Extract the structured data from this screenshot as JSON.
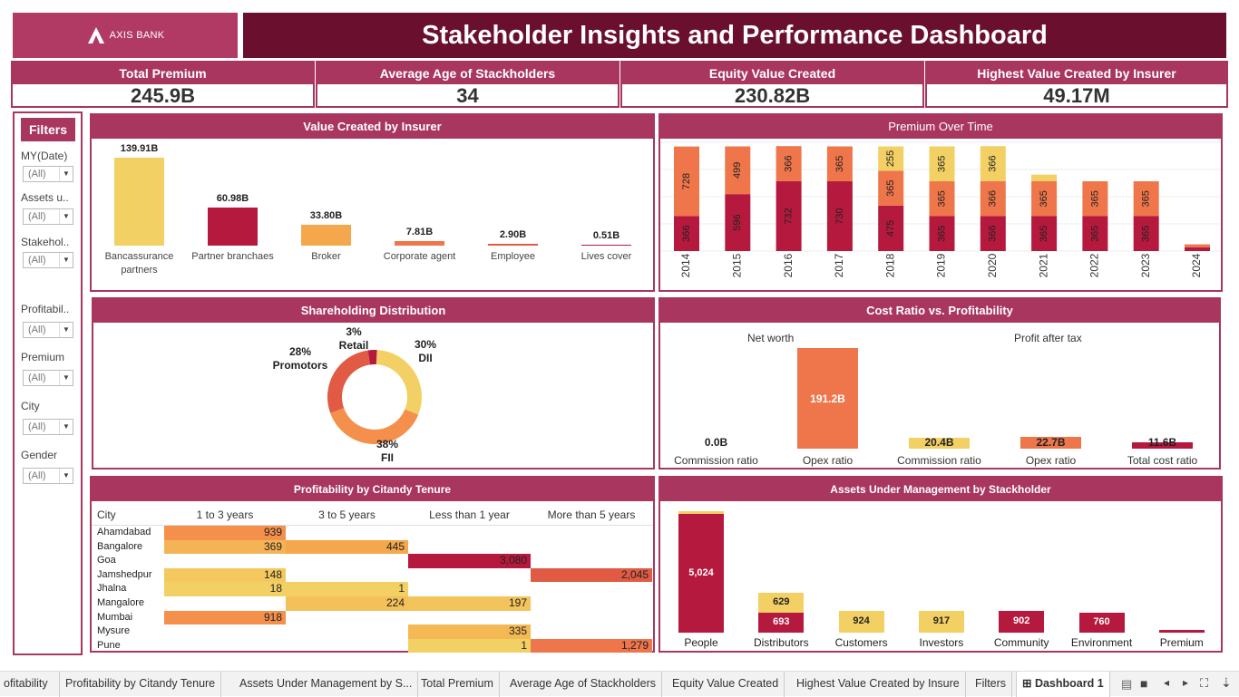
{
  "brand": {
    "name": "AXIS BANK"
  },
  "title": "Stakeholder Insights and Performance Dashboard",
  "colors": {
    "dark": "#6b0f2e",
    "accent": "#a8365f",
    "crimson": "#b5193d",
    "orange": "#ee764a",
    "yellow": "#f2d064",
    "amber": "#f4a84b",
    "red": "#e05a44"
  },
  "kpis": [
    {
      "label": "Total Premium",
      "value": "245.9B"
    },
    {
      "label": "Average Age of Stackholders",
      "value": "34"
    },
    {
      "label": "Equity Value Created",
      "value": "230.82B"
    },
    {
      "label": "Highest Value Created by Insurer",
      "value": "49.17M"
    }
  ],
  "filters": {
    "title": "Filters",
    "items": [
      {
        "label": "MY(Date)",
        "value": "(All)"
      },
      {
        "label": "Assets u..",
        "value": "(All)"
      },
      {
        "label": "Stakehol..",
        "value": "(All)"
      },
      {
        "label": "Profitabil..",
        "value": "(All)"
      },
      {
        "label": "Premium",
        "value": "(All)"
      },
      {
        "label": "City",
        "value": "(All)"
      },
      {
        "label": "Gender",
        "value": "(All)"
      }
    ]
  },
  "value_insurer": {
    "title": "Value Created by Insurer",
    "chart_data": {
      "type": "bar",
      "categories": [
        "Bancassurance partners",
        "Partner branchaes",
        "Broker",
        "Corporate agent",
        "Employee",
        "Lives cover"
      ],
      "values": [
        139.91,
        60.98,
        33.8,
        7.81,
        2.9,
        0.51
      ],
      "labels": [
        "139.91B",
        "60.98B",
        "33.80B",
        "7.81B",
        "2.90B",
        "0.51B"
      ],
      "colors": [
        "#f2d064",
        "#b5193d",
        "#f4a84b",
        "#ee764a",
        "#e05a44",
        "#b5193d"
      ]
    }
  },
  "premium_time": {
    "title": "Premium Over Time",
    "chart_data": {
      "type": "bar",
      "stacked": true,
      "categories": [
        "2014",
        "2015",
        "2016",
        "2017",
        "2018",
        "2019",
        "2020",
        "2021",
        "2022",
        "2023",
        "2024"
      ],
      "series": [
        {
          "color": "#b5193d",
          "values": [
            366,
            596,
            732,
            730,
            475,
            365,
            366,
            365,
            365,
            365,
            40
          ],
          "labels": [
            "366",
            "596",
            "732",
            "730",
            "475",
            "365",
            "366",
            "365",
            "365",
            "365",
            ""
          ]
        },
        {
          "color": "#ee764a",
          "values": [
            728,
            499,
            366,
            365,
            365,
            365,
            366,
            365,
            365,
            365,
            30
          ],
          "labels": [
            "728",
            "499",
            "366",
            "365",
            "365",
            "365",
            "366",
            "365",
            "365",
            "365",
            ""
          ]
        },
        {
          "color": "#f2d064",
          "values": [
            0,
            0,
            0,
            0,
            255,
            365,
            366,
            70,
            0,
            0,
            0
          ],
          "labels": [
            "",
            "",
            "",
            "",
            "255",
            "365",
            "366",
            "",
            "",
            "",
            ""
          ]
        }
      ]
    }
  },
  "shareholding": {
    "title": "Shareholding Distribution",
    "chart_data": {
      "type": "pie",
      "categories": [
        "DII",
        "FII",
        "Promotors",
        "Retail"
      ],
      "values": [
        30,
        38,
        28,
        3
      ],
      "colors": [
        "#f2d064",
        "#f4904b",
        "#e05a44",
        "#b5193d"
      ],
      "labels": [
        {
          "pct": "30%",
          "name": "DII"
        },
        {
          "pct": "38%",
          "name": "FII"
        },
        {
          "pct": "28%",
          "name": "Promotors"
        },
        {
          "pct": "3%",
          "name": "Retail"
        }
      ]
    }
  },
  "cost_ratio": {
    "title": "Cost Ratio vs. Profitability",
    "groups": [
      "Net worth",
      "Profit after tax"
    ],
    "chart_data": {
      "type": "bar",
      "categories": [
        "Commission ratio",
        "Opex ratio",
        "Commission ratio",
        "Opex ratio",
        "Total cost ratio"
      ],
      "values": [
        0.0,
        191.2,
        20.4,
        22.7,
        11.6
      ],
      "labels": [
        "0.0B",
        "191.2B",
        "20.4B",
        "22.7B",
        "11.6B"
      ],
      "colors": [
        "#ee764a",
        "#ee764a",
        "#f2d064",
        "#ee764a",
        "#b5193d"
      ]
    }
  },
  "profitability": {
    "title": "Profitability by Citandy  Tenure",
    "columns": [
      "City",
      "1 to 3 years",
      "3 to 5 years",
      "Less than 1 year",
      "More than 5 years"
    ],
    "rows": [
      {
        "city": "Ahamdabad",
        "cells": [
          {
            "v": "939",
            "c": "#f4904b"
          },
          null,
          null,
          null
        ]
      },
      {
        "city": "Bangalore",
        "cells": [
          {
            "v": "369",
            "c": "#f4b456"
          },
          {
            "v": "445",
            "c": "#f4a84b"
          },
          null,
          null
        ]
      },
      {
        "city": "Goa",
        "cells": [
          null,
          null,
          {
            "v": "3,080",
            "c": "#b5193d"
          },
          null
        ]
      },
      {
        "city": "Jamshedpur",
        "cells": [
          {
            "v": "148",
            "c": "#f4c85e"
          },
          null,
          null,
          {
            "v": "2,045",
            "c": "#e05a44"
          }
        ]
      },
      {
        "city": "Jhalna",
        "cells": [
          {
            "v": "18",
            "c": "#f2d064"
          },
          {
            "v": "1",
            "c": "#f2d064"
          },
          null,
          null
        ]
      },
      {
        "city": "Mangalore",
        "cells": [
          null,
          {
            "v": "224",
            "c": "#f4c05a"
          },
          {
            "v": "197",
            "c": "#f4c45c"
          },
          null
        ]
      },
      {
        "city": "Mumbai",
        "cells": [
          {
            "v": "918",
            "c": "#f4904b"
          },
          null,
          null,
          null
        ]
      },
      {
        "city": "Mysure",
        "cells": [
          null,
          null,
          {
            "v": "335",
            "c": "#f4b854"
          },
          null
        ]
      },
      {
        "city": "Pune",
        "cells": [
          null,
          null,
          {
            "v": "1",
            "c": "#f2d064"
          },
          {
            "v": "1,279",
            "c": "#ee764a"
          }
        ]
      }
    ]
  },
  "aum": {
    "title": "Assets Under Management by Stackholder",
    "chart_data": {
      "type": "bar",
      "stacked": true,
      "categories": [
        "People",
        "Distributors",
        "Customers",
        "Investors",
        "Community",
        "Environment",
        "Premium"
      ],
      "series": [
        {
          "color": "#b5193d",
          "values": [
            5024,
            693,
            0,
            0,
            902,
            760,
            100
          ],
          "labels": [
            "5,024",
            "693",
            "",
            "",
            "902",
            "760",
            ""
          ]
        },
        {
          "color": "#f2d064",
          "values": [
            80,
            629,
            924,
            917,
            0,
            0,
            0
          ],
          "labels": [
            "",
            "629",
            "924",
            "917",
            "",
            "",
            ""
          ]
        }
      ]
    }
  },
  "tabs": [
    "ofitability",
    "Profitability by Citandy  Tenure",
    "Assets Under Management by S...",
    "Total Premium",
    "Average Age of Stackholders",
    "Equity Value Created",
    "Highest Value Created by Insure",
    "Filters",
    "Dashboard 1"
  ]
}
